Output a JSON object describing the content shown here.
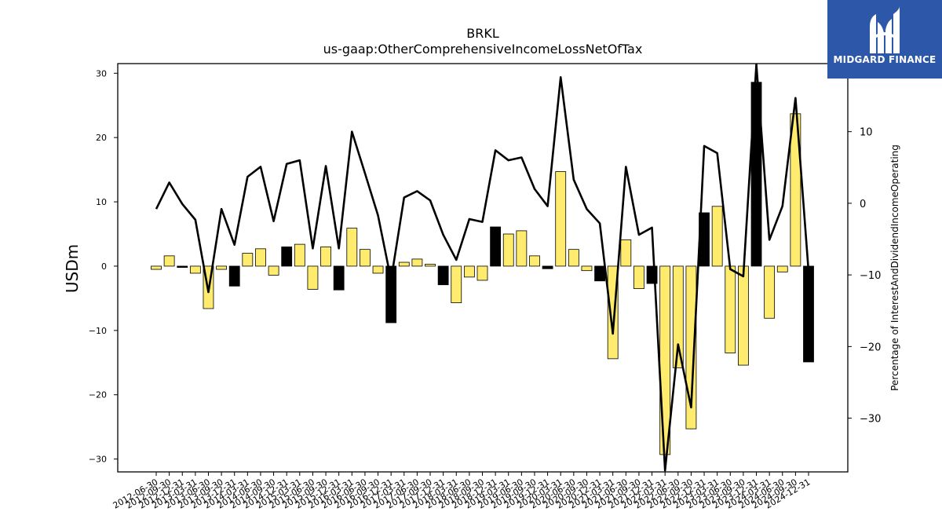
{
  "brand": {
    "name": "MIDGARD FINANCE",
    "logo_icon": "midgard-m-logo-icon",
    "color": "#2d57a8"
  },
  "chart_data": {
    "type": "bar",
    "title": "BRKL",
    "subtitle": "us-gaap:OtherComprehensiveIncomeLossNetOfTax",
    "ylabel": "USDm",
    "y2label": "Percentage of InterestAndDividendIncomeOperating",
    "ylim": [
      -32,
      31.5
    ],
    "yticks": [
      -30,
      -20,
      -10,
      0,
      10,
      20,
      30
    ],
    "y2lim": [
      -37.5,
      19.5
    ],
    "y2ticks": [
      -30,
      -20,
      -10,
      0,
      10
    ],
    "colors": {
      "positive_bar": "#ffec6e",
      "negative_bar": "#000000",
      "line": "#000000"
    },
    "categories": [
      "2012-06-30",
      "2012-09-30",
      "2012-12-31",
      "2013-03-31",
      "2013-06-30",
      "2013-09-30",
      "2013-12-31",
      "2014-03-31",
      "2014-06-30",
      "2014-09-30",
      "2014-12-31",
      "2015-03-31",
      "2015-06-30",
      "2015-09-30",
      "2015-12-31",
      "2016-03-31",
      "2016-06-30",
      "2016-09-30",
      "2016-12-31",
      "2017-03-31",
      "2017-06-30",
      "2017-09-30",
      "2017-12-31",
      "2018-03-31",
      "2018-06-30",
      "2018-09-30",
      "2018-12-31",
      "2019-03-31",
      "2019-06-30",
      "2019-09-30",
      "2019-12-31",
      "2020-03-31",
      "2020-06-30",
      "2020-09-30",
      "2020-12-31",
      "2021-03-31",
      "2021-06-30",
      "2021-09-30",
      "2021-12-31",
      "2022-03-31",
      "2022-06-30",
      "2022-09-30",
      "2022-12-31",
      "2023-03-31",
      "2023-06-30",
      "2023-09-30",
      "2023-12-31",
      "2024-03-31",
      "2024-06-30",
      "2024-09-30",
      "2024-12-31"
    ],
    "series": [
      {
        "type": "bar",
        "values": [
          -0.5,
          1.6,
          -0.2,
          -1.1,
          -6.6,
          -0.5,
          -3.1,
          2.0,
          2.7,
          -1.4,
          3.0,
          3.4,
          -3.6,
          3.0,
          -3.7,
          5.9,
          2.6,
          -1.1,
          -8.8,
          0.6,
          1.1,
          0.3,
          -2.9,
          -5.7,
          -1.7,
          -2.2,
          6.1,
          5.0,
          5.5,
          1.6,
          -0.4,
          14.7,
          2.6,
          -0.7,
          -2.3,
          -14.4,
          4.1,
          -3.5,
          -2.7,
          -29.3,
          -15.8,
          -25.3,
          8.3,
          9.3,
          -13.5,
          -15.4,
          28.6,
          -8.1,
          -0.9,
          23.7,
          -14.9
        ],
        "highlight": [
          false,
          false,
          true,
          false,
          false,
          false,
          true,
          false,
          false,
          false,
          true,
          false,
          false,
          false,
          true,
          false,
          false,
          false,
          true,
          false,
          false,
          false,
          true,
          false,
          false,
          false,
          true,
          false,
          false,
          false,
          true,
          false,
          false,
          false,
          true,
          false,
          false,
          false,
          true,
          false,
          false,
          false,
          true,
          false,
          false,
          false,
          true,
          false,
          false,
          false,
          true
        ]
      },
      {
        "type": "line",
        "axis": "right",
        "values": [
          -0.8,
          2.9,
          -0.1,
          -2.3,
          -12.4,
          -0.8,
          -5.8,
          3.7,
          5.1,
          -2.5,
          5.5,
          6.0,
          -6.3,
          5.2,
          -6.3,
          10.0,
          4.2,
          -1.7,
          -10.7,
          0.8,
          1.7,
          0.4,
          -4.4,
          -7.9,
          -2.2,
          -2.6,
          7.4,
          6.0,
          6.4,
          2.0,
          -0.4,
          17.6,
          3.3,
          -0.8,
          -2.8,
          -18.2,
          5.1,
          -4.4,
          -3.4,
          -37.3,
          -19.7,
          -28.5,
          8.0,
          7.0,
          -9.2,
          -10.2,
          19.4,
          -5.1,
          -0.4,
          14.7,
          -9.5
        ]
      }
    ]
  }
}
